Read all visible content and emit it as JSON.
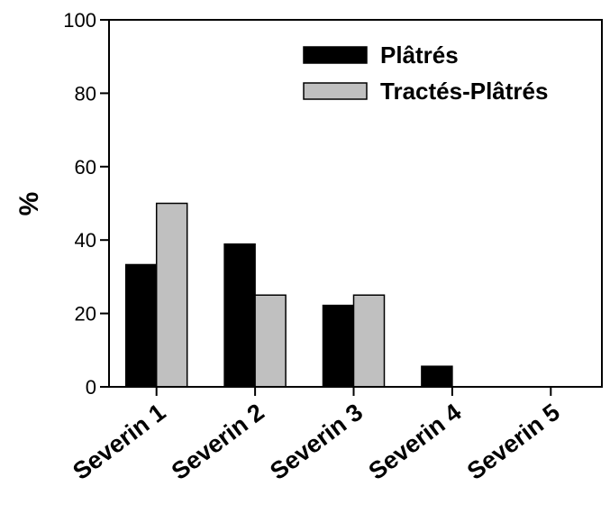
{
  "chart_data": {
    "type": "bar",
    "categories": [
      "Severin 1",
      "Severin 2",
      "Severin 3",
      "Severin 4",
      "Severin 5"
    ],
    "series": [
      {
        "name": "Plâtrés",
        "values": [
          33.3,
          38.9,
          22.2,
          5.6,
          0
        ],
        "color": "#000000"
      },
      {
        "name": "Tractés-Plâtrés",
        "values": [
          50,
          25,
          25,
          0,
          0
        ],
        "color": "#c0c0c0"
      }
    ],
    "title": "",
    "xlabel": "",
    "ylabel": "%",
    "ylim": [
      0,
      100
    ],
    "yticks": [
      0,
      20,
      40,
      60,
      80,
      100
    ],
    "grid": false,
    "legend_position": "top-right"
  }
}
